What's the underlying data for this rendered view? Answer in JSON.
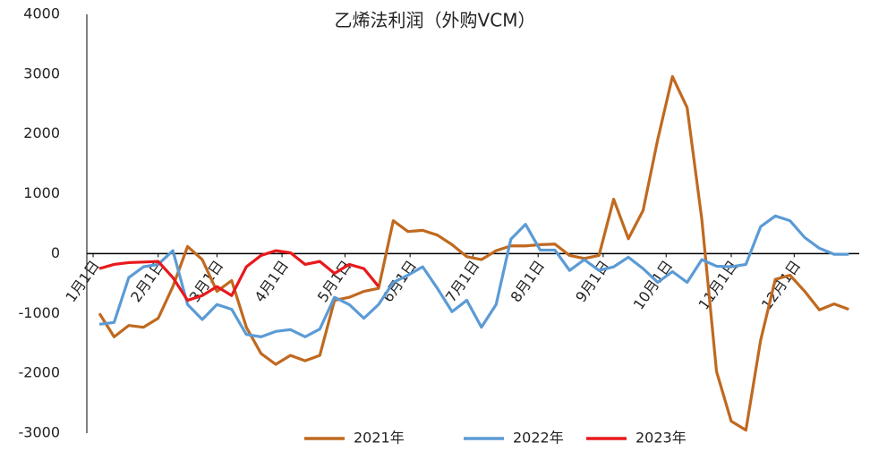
{
  "chart_data": {
    "type": "line",
    "title": "乙烯法利润（外购VCM）",
    "xlim": [
      -3,
      365
    ],
    "ylim": [
      -3000,
      4000
    ],
    "yticks": [
      -3000,
      -2000,
      -1000,
      0,
      1000,
      2000,
      3000,
      4000
    ],
    "xticks": [
      {
        "value": 0,
        "label": "1月1日"
      },
      {
        "value": 31,
        "label": "2月1日"
      },
      {
        "value": 59,
        "label": "3月1日"
      },
      {
        "value": 90,
        "label": "4月1日"
      },
      {
        "value": 120,
        "label": "5月1日"
      },
      {
        "value": 151,
        "label": "6月1日"
      },
      {
        "value": 181,
        "label": "7月1日"
      },
      {
        "value": 212,
        "label": "8月1日"
      },
      {
        "value": 243,
        "label": "9月1日"
      },
      {
        "value": 273,
        "label": "10月1日"
      },
      {
        "value": 304,
        "label": "11月1日"
      },
      {
        "value": 334,
        "label": "12月1日"
      }
    ],
    "grid": false,
    "legend": "bottom",
    "series": [
      {
        "name": "2021年",
        "color": "#c0691f",
        "x": [
          3,
          10,
          17,
          24,
          31,
          38,
          45,
          52,
          59,
          66,
          73,
          80,
          87,
          94,
          101,
          108,
          115,
          122,
          129,
          136,
          143,
          150,
          157,
          164,
          171,
          178,
          185,
          192,
          199,
          206,
          213,
          220,
          227,
          234,
          241,
          248,
          255,
          262,
          269,
          276,
          283,
          290,
          297,
          304,
          311,
          318,
          325,
          332,
          339,
          346,
          353,
          360
        ],
        "values": [
          -1000,
          -1390,
          -1200,
          -1230,
          -1080,
          -550,
          120,
          -100,
          -630,
          -450,
          -1230,
          -1670,
          -1850,
          -1700,
          -1790,
          -1700,
          -780,
          -730,
          -630,
          -580,
          550,
          370,
          390,
          310,
          150,
          -50,
          -100,
          50,
          130,
          130,
          150,
          160,
          -30,
          -80,
          -30,
          910,
          250,
          720,
          1910,
          2960,
          2440,
          570,
          -1970,
          -2800,
          -2950,
          -1450,
          -430,
          -360,
          -630,
          -940,
          -840,
          -930
        ]
      },
      {
        "name": "2022年",
        "color": "#5b9bd5",
        "x": [
          3,
          10,
          17,
          24,
          31,
          38,
          45,
          52,
          59,
          66,
          73,
          80,
          87,
          94,
          101,
          108,
          115,
          122,
          129,
          136,
          143,
          150,
          157,
          164,
          171,
          178,
          185,
          192,
          199,
          206,
          213,
          220,
          227,
          234,
          241,
          248,
          255,
          262,
          269,
          276,
          283,
          290,
          297,
          304,
          311,
          318,
          325,
          332,
          339,
          346,
          353,
          360
        ],
        "values": [
          -1180,
          -1150,
          -400,
          -220,
          -180,
          50,
          -850,
          -1100,
          -850,
          -930,
          -1350,
          -1390,
          -1300,
          -1270,
          -1390,
          -1260,
          -730,
          -850,
          -1080,
          -850,
          -480,
          -360,
          -220,
          -580,
          -970,
          -780,
          -1230,
          -850,
          240,
          490,
          60,
          60,
          -280,
          -100,
          -280,
          -220,
          -60,
          -250,
          -480,
          -300,
          -480,
          -100,
          -210,
          -220,
          -180,
          450,
          630,
          550,
          270,
          90,
          -10,
          -10
        ]
      },
      {
        "name": "2023年",
        "color": "#e8191c",
        "x": [
          3,
          10,
          17,
          24,
          31,
          38,
          45,
          52,
          59,
          66,
          73,
          80,
          87,
          94,
          101,
          108,
          115,
          122,
          129,
          136
        ],
        "values": [
          -250,
          -180,
          -150,
          -140,
          -130,
          -400,
          -780,
          -700,
          -550,
          -700,
          -220,
          -30,
          50,
          15,
          -180,
          -130,
          -330,
          -180,
          -250,
          -550
        ]
      }
    ]
  }
}
